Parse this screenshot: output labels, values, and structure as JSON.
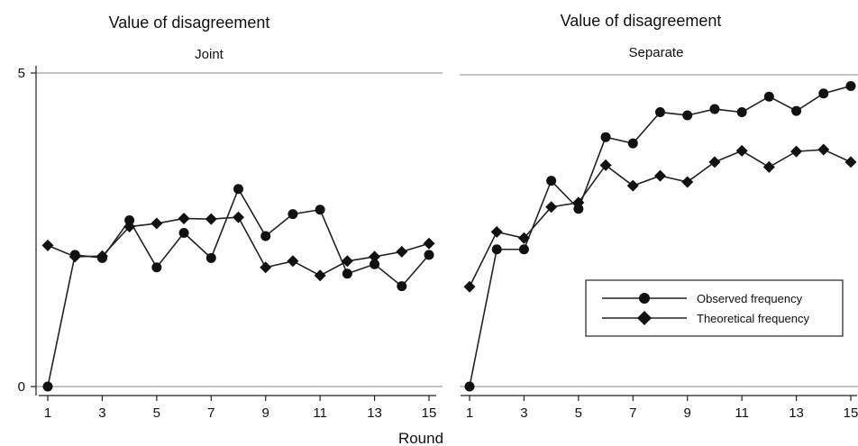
{
  "chart_data": [
    {
      "type": "line",
      "title": "Value of disagreement",
      "subtitle": "Joint",
      "xlabel": "Round",
      "ylabel": "",
      "x": [
        1,
        2,
        3,
        4,
        5,
        6,
        7,
        8,
        9,
        10,
        11,
        12,
        13,
        14,
        15
      ],
      "xticks": [
        1,
        3,
        5,
        7,
        9,
        11,
        13,
        15
      ],
      "yticks": [
        0,
        5
      ],
      "ylim": [
        0,
        5
      ],
      "grid": true,
      "series": [
        {
          "name": "Observed frequency",
          "marker": "circle",
          "values": [
            0,
            2.1,
            2.05,
            2.65,
            1.9,
            2.45,
            2.05,
            3.15,
            2.4,
            2.75,
            2.82,
            1.8,
            1.95,
            1.6,
            2.1
          ]
        },
        {
          "name": "Theoretical frequency",
          "marker": "diamond",
          "values": [
            2.25,
            2.07,
            2.08,
            2.55,
            2.6,
            2.68,
            2.67,
            2.7,
            1.9,
            2.0,
            1.77,
            2.0,
            2.07,
            2.15,
            2.28
          ]
        }
      ]
    },
    {
      "type": "line",
      "title": "Value of disagreement",
      "subtitle": "Separate",
      "xlabel": "Round",
      "ylabel": "",
      "x": [
        1,
        2,
        3,
        4,
        5,
        6,
        7,
        8,
        9,
        10,
        11,
        12,
        13,
        14,
        15
      ],
      "xticks": [
        1,
        3,
        5,
        7,
        9,
        11,
        13,
        15
      ],
      "yticks": [
        0,
        5
      ],
      "ylim": [
        0,
        5
      ],
      "grid": true,
      "legend": {
        "placement": "right",
        "entries": [
          "Observed frequency",
          "Theoretical frequency"
        ]
      },
      "series": [
        {
          "name": "Observed frequency",
          "marker": "circle",
          "values": [
            0,
            2.2,
            2.2,
            3.3,
            2.85,
            4.0,
            3.9,
            4.4,
            4.35,
            4.45,
            4.4,
            4.65,
            4.42,
            4.7,
            4.82
          ]
        },
        {
          "name": "Theoretical frequency",
          "marker": "diamond",
          "values": [
            1.6,
            2.48,
            2.38,
            2.88,
            2.95,
            3.55,
            3.22,
            3.38,
            3.28,
            3.6,
            3.78,
            3.52,
            3.77,
            3.8,
            3.6
          ]
        }
      ]
    }
  ]
}
